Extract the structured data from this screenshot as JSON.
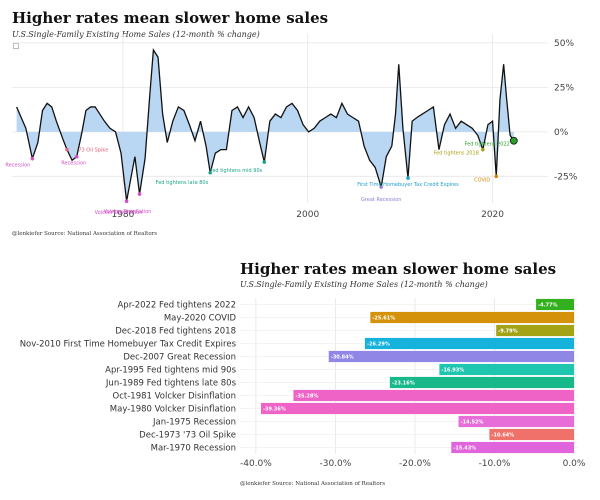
{
  "chart_data": [
    {
      "type": "area",
      "title": "Higher rates mean slower home sales",
      "subtitle": "U.S.Single-Family Existing Home Sales (12-month % change)",
      "source": "@lenkiefer Source: National Association of Realtors",
      "x_ticks": [
        "1980",
        "2000",
        "2020"
      ],
      "x_tick_values": [
        1980,
        2000,
        2020
      ],
      "y_ticks": [
        "50%",
        "25%",
        "0%",
        "-25%"
      ],
      "y_tick_values": [
        50,
        25,
        0,
        -25
      ],
      "xlim": [
        1968,
        2026
      ],
      "ylim": [
        -40,
        55
      ],
      "series": [
        {
          "name": "12-month % change",
          "points": [
            [
              1968.5,
              14
            ],
            [
              1969.0,
              8
            ],
            [
              1969.5,
              2
            ],
            [
              1970.2,
              -15
            ],
            [
              1970.8,
              -6
            ],
            [
              1971.3,
              12
            ],
            [
              1971.8,
              16
            ],
            [
              1972.3,
              14
            ],
            [
              1972.8,
              6
            ],
            [
              1973.5,
              -4
            ],
            [
              1973.95,
              -10
            ],
            [
              1974.5,
              -16
            ],
            [
              1975.0,
              -14
            ],
            [
              1975.5,
              -2
            ],
            [
              1976.0,
              12
            ],
            [
              1976.5,
              14
            ],
            [
              1977.0,
              14
            ],
            [
              1977.5,
              10
            ],
            [
              1978.0,
              6
            ],
            [
              1978.6,
              2
            ],
            [
              1979.2,
              0
            ],
            [
              1979.8,
              -12
            ],
            [
              1980.4,
              -39
            ],
            [
              1980.9,
              -25
            ],
            [
              1981.3,
              -14
            ],
            [
              1981.8,
              -35
            ],
            [
              1982.4,
              -15
            ],
            [
              1982.9,
              20
            ],
            [
              1983.3,
              46
            ],
            [
              1983.8,
              42
            ],
            [
              1984.3,
              10
            ],
            [
              1984.8,
              -6
            ],
            [
              1985.4,
              6
            ],
            [
              1986.0,
              14
            ],
            [
              1986.6,
              12
            ],
            [
              1987.2,
              4
            ],
            [
              1987.8,
              -5
            ],
            [
              1988.4,
              6
            ],
            [
              1989.0,
              -8
            ],
            [
              1989.45,
              -23
            ],
            [
              1990.0,
              -12
            ],
            [
              1990.6,
              -10
            ],
            [
              1991.2,
              -10
            ],
            [
              1991.8,
              12
            ],
            [
              1992.4,
              14
            ],
            [
              1993.0,
              8
            ],
            [
              1993.6,
              14
            ],
            [
              1994.2,
              8
            ],
            [
              1994.8,
              -6
            ],
            [
              1995.3,
              -17
            ],
            [
              1995.9,
              6
            ],
            [
              1996.5,
              10
            ],
            [
              1997.1,
              8
            ],
            [
              1997.7,
              14
            ],
            [
              1998.3,
              16
            ],
            [
              1998.9,
              12
            ],
            [
              1999.5,
              4
            ],
            [
              2000.1,
              0
            ],
            [
              2000.7,
              2
            ],
            [
              2001.3,
              6
            ],
            [
              2001.9,
              8
            ],
            [
              2002.5,
              10
            ],
            [
              2003.1,
              8
            ],
            [
              2003.7,
              16
            ],
            [
              2004.3,
              10
            ],
            [
              2004.9,
              8
            ],
            [
              2005.5,
              6
            ],
            [
              2006.1,
              -8
            ],
            [
              2006.7,
              -16
            ],
            [
              2007.3,
              -20
            ],
            [
              2007.95,
              -31
            ],
            [
              2008.5,
              -14
            ],
            [
              2009.1,
              -8
            ],
            [
              2009.5,
              10
            ],
            [
              2009.85,
              38
            ],
            [
              2010.3,
              2
            ],
            [
              2010.85,
              -26
            ],
            [
              2011.3,
              6
            ],
            [
              2011.8,
              8
            ],
            [
              2012.4,
              10
            ],
            [
              2013.0,
              12
            ],
            [
              2013.6,
              14
            ],
            [
              2014.2,
              -10
            ],
            [
              2014.8,
              4
            ],
            [
              2015.4,
              10
            ],
            [
              2016.0,
              2
            ],
            [
              2016.6,
              6
            ],
            [
              2017.2,
              4
            ],
            [
              2017.8,
              2
            ],
            [
              2018.4,
              -2
            ],
            [
              2018.95,
              -10
            ],
            [
              2019.5,
              4
            ],
            [
              2020.0,
              6
            ],
            [
              2020.4,
              -25
            ],
            [
              2020.8,
              18
            ],
            [
              2021.2,
              38
            ],
            [
              2021.5,
              20
            ],
            [
              2021.9,
              -2
            ],
            [
              2022.3,
              -5
            ]
          ]
        }
      ],
      "annotations": [
        {
          "label": "Recession",
          "x": 1970.2,
          "y": -15,
          "color": "#d14fc9"
        },
        {
          "label": "'73 Oil Spike",
          "x": 1973.95,
          "y": -10,
          "color": "#e8607a"
        },
        {
          "label": "Recession",
          "x": 1975.0,
          "y": -14,
          "color": "#d14fc9"
        },
        {
          "label": "Volcker Disinflation",
          "x": 1980.4,
          "y": -39,
          "color": "#d14fc9"
        },
        {
          "label": "Volcker Disinflation",
          "x": 1981.8,
          "y": -35,
          "color": "#d14fc9"
        },
        {
          "label": "Fed tightens late 80s",
          "x": 1989.45,
          "y": -23,
          "color": "#1aa38a"
        },
        {
          "label": "Fed tightens mid 90s",
          "x": 1995.3,
          "y": -17,
          "color": "#1aa38a"
        },
        {
          "label": "Great Recession",
          "x": 2007.95,
          "y": -31,
          "color": "#8c7fd9"
        },
        {
          "label": "First Time Homebuyer Tax Credit Expires",
          "x": 2010.85,
          "y": -26,
          "color": "#1e9fcf"
        },
        {
          "label": "Fed tightens 2018",
          "x": 2018.95,
          "y": -10,
          "color": "#a8a010"
        },
        {
          "label": "COVID",
          "x": 2020.4,
          "y": -25,
          "color": "#d18a00"
        },
        {
          "label": "Fed tightens 2022",
          "x": 2022.3,
          "y": -5,
          "color": "#2aa02a"
        }
      ]
    },
    {
      "type": "bar",
      "orientation": "horizontal",
      "title": "Higher rates mean slower home sales",
      "subtitle": "U.S.Single-Family Existing Home Sales (12-month % change)",
      "source": "@lenkiefer Source: National Association of Realtors",
      "categories": [
        "Apr-2022 Fed tightens 2022",
        "May-2020 COVID",
        "Dec-2018 Fed tightens 2018",
        "Nov-2010 First Time Homebuyer Tax Credit Expires",
        "Dec-2007 Great Recession",
        "Apr-1995 Fed tightens mid 90s",
        "Jun-1989 Fed tightens late 80s",
        "Oct-1981 Volcker Disinflation",
        "May-1980 Volcker Disinflation",
        "Jan-1975 Recession",
        "Dec-1973 '73 Oil Spike",
        "Mar-1970 Recession"
      ],
      "values": [
        -4.77,
        -25.61,
        -9.79,
        -26.29,
        -30.84,
        -16.93,
        -23.16,
        -35.28,
        -39.36,
        -14.52,
        -10.64,
        -15.43
      ],
      "value_labels": [
        "-4.77%",
        "-25.61%",
        "-9.79%",
        "-26.29%",
        "-30.84%",
        "-16.93%",
        "-23.16%",
        "-35.28%",
        "-39.36%",
        "-14.52%",
        "-10.64%",
        "-15.43%"
      ],
      "colors": [
        "#33b01d",
        "#d4920b",
        "#a4a316",
        "#15b2dc",
        "#8f86e6",
        "#1ec6b0",
        "#17b98a",
        "#f063c6",
        "#f063c6",
        "#e76ed8",
        "#f0706a",
        "#e065dd"
      ],
      "xlim": [
        -42,
        0.5
      ],
      "x_ticks": [
        "-40.0%",
        "-30.0%",
        "-20.0%",
        "-10.0%",
        "0.0%"
      ],
      "x_tick_values": [
        -40,
        -30,
        -20,
        -10,
        0
      ]
    }
  ]
}
